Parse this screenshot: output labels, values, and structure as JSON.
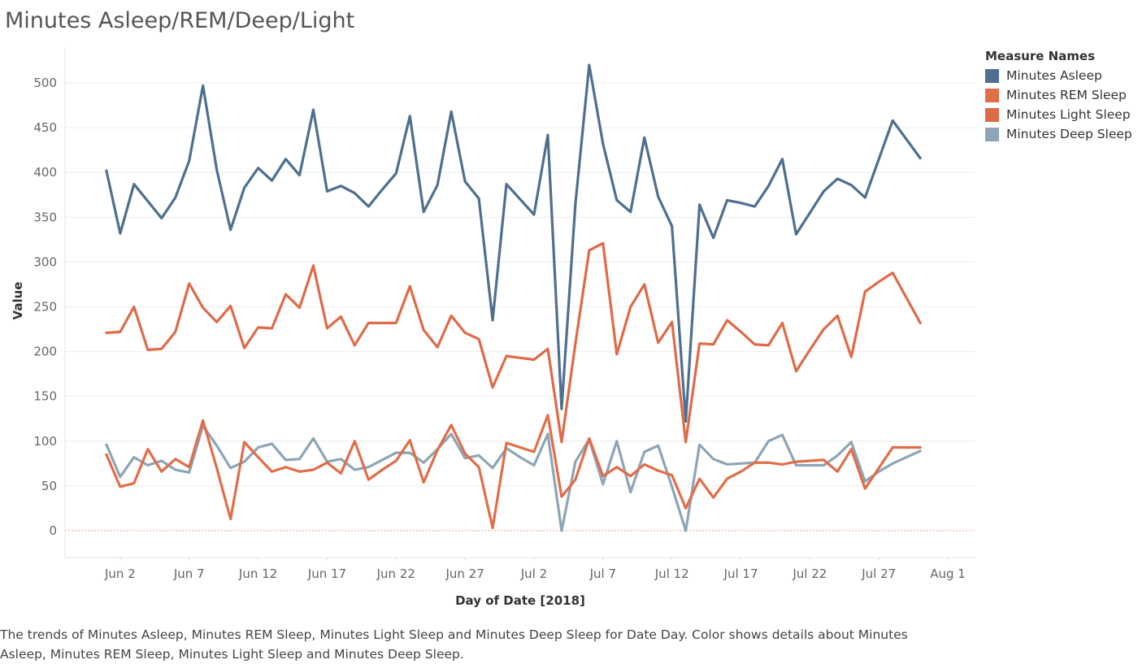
{
  "chart_data": {
    "type": "line",
    "title": "Minutes Asleep/REM/Deep/Light",
    "xlabel": "Day of Date [2018]",
    "ylabel": "Value",
    "x_start": "2018-06-01",
    "x_tick_labels": [
      "Jun 2",
      "Jun 7",
      "Jun 12",
      "Jun 17",
      "Jun 22",
      "Jun 27",
      "Jul 2",
      "Jul 7",
      "Jul 12",
      "Jul 17",
      "Jul 22",
      "Jul 27",
      "Aug 1"
    ],
    "x_ticks_day_index": [
      1,
      6,
      11,
      16,
      21,
      26,
      31,
      36,
      41,
      46,
      51,
      56,
      61
    ],
    "xlim_day_index": [
      -3,
      63
    ],
    "ylim": [
      -30,
      540
    ],
    "yticks": [
      0,
      50,
      100,
      150,
      200,
      250,
      300,
      350,
      400,
      450,
      500
    ],
    "grid": true,
    "zero_line": true,
    "legend_title": "Measure Names",
    "legend_position": "right",
    "series": [
      {
        "name": "Minutes Asleep",
        "color": "#4e6f8f",
        "values": [
          402,
          332,
          387,
          368,
          349,
          372,
          413,
          497,
          403,
          336,
          383,
          405,
          391,
          415,
          397,
          470,
          379,
          385,
          377,
          362,
          381,
          399,
          463,
          356,
          386,
          468,
          390,
          371,
          235,
          387,
          370,
          353,
          442,
          136,
          365,
          520,
          432,
          369,
          356,
          439,
          373,
          340,
          122,
          364,
          327,
          369,
          366,
          362,
          385,
          415,
          331,
          355,
          379,
          393,
          386,
          372,
          415,
          458,
          437,
          416
        ]
      },
      {
        "name": "Minutes REM Sleep",
        "color": "#e06e49",
        "values": [
          85,
          49,
          53,
          91,
          66,
          80,
          71,
          123,
          70,
          13,
          99,
          82,
          66,
          71,
          66,
          68,
          76,
          64,
          100,
          57,
          68,
          78,
          101,
          54,
          90,
          118,
          86,
          71,
          3,
          98,
          93,
          88,
          129,
          38,
          57,
          103,
          61,
          71,
          61,
          74,
          67,
          62,
          25,
          58,
          37,
          58,
          66,
          76,
          76,
          74,
          77,
          78,
          79,
          66,
          91,
          47,
          70,
          93,
          93,
          93
        ]
      },
      {
        "name": "Minutes Light Sleep",
        "color": "#dd6b48",
        "values": [
          221,
          222,
          250,
          202,
          203,
          222,
          276,
          249,
          233,
          251,
          204,
          227,
          226,
          264,
          249,
          296,
          226,
          239,
          207,
          232,
          232,
          232,
          273,
          224,
          205,
          240,
          221,
          214,
          160,
          195,
          193,
          191,
          203,
          99,
          209,
          313,
          321,
          197,
          250,
          275,
          210,
          233,
          99,
          209,
          208,
          235,
          222,
          208,
          207,
          232,
          178,
          202,
          225,
          240,
          194,
          267,
          278,
          288,
          260,
          232
        ]
      },
      {
        "name": "Minutes Deep Sleep",
        "color": "#8da5b6",
        "values": [
          96,
          60,
          82,
          73,
          78,
          68,
          65,
          117,
          95,
          70,
          77,
          93,
          97,
          79,
          80,
          103,
          77,
          80,
          68,
          71,
          79,
          87,
          87,
          76,
          91,
          108,
          81,
          84,
          70,
          92,
          82,
          73,
          108,
          0,
          77,
          102,
          52,
          100,
          43,
          88,
          95,
          49,
          0,
          96,
          80,
          74,
          75,
          76,
          100,
          107,
          73,
          73,
          73,
          84,
          99,
          55,
          66,
          75,
          82,
          89
        ]
      }
    ]
  },
  "caption": "The trends of Minutes Asleep, Minutes REM Sleep, Minutes Light Sleep and Minutes Deep Sleep for Date Day.  Color shows details about Minutes Asleep, Minutes REM Sleep, Minutes Light Sleep and Minutes Deep Sleep."
}
